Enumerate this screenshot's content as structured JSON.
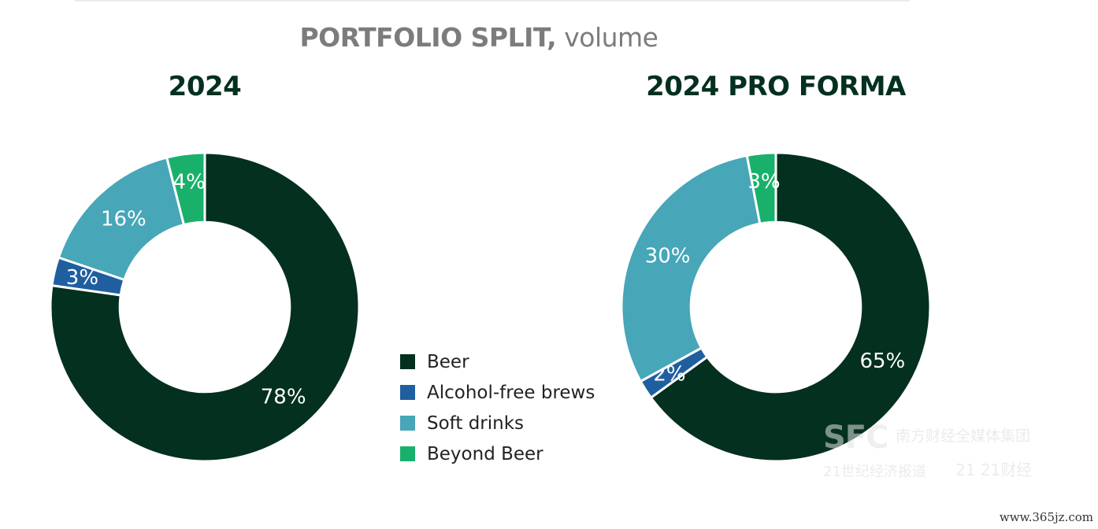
{
  "heading": {
    "bold": "PORTFOLIO SPLIT,",
    "rest": " volume"
  },
  "chart_data": [
    {
      "type": "pie",
      "title": "2024",
      "categories": [
        "Beer",
        "Alcohol-free brews",
        "Soft drinks",
        "Beyond Beer"
      ],
      "values": [
        78,
        3,
        16,
        4
      ],
      "labels": [
        "78%",
        "3%",
        "16%",
        "4%"
      ],
      "colors": [
        "#04301f",
        "#1f5fa0",
        "#47a6b8",
        "#19b06c"
      ],
      "hole": 0.55,
      "start": "12 o'clock, clockwise",
      "legend": "center"
    },
    {
      "type": "pie",
      "title": "2024 PRO FORMA",
      "categories": [
        "Beer",
        "Alcohol-free brews",
        "Soft drinks",
        "Beyond Beer"
      ],
      "values": [
        65,
        2,
        30,
        3
      ],
      "labels": [
        "65%",
        "2%",
        "30%",
        "3%"
      ],
      "colors": [
        "#04301f",
        "#1f5fa0",
        "#47a6b8",
        "#19b06c"
      ],
      "hole": 0.55,
      "start": "12 o'clock, clockwise",
      "legend": "center"
    }
  ],
  "legend": {
    "items": [
      {
        "label": "Beer",
        "color": "#04301f"
      },
      {
        "label": "Alcohol-free brews",
        "color": "#1f5fa0"
      },
      {
        "label": "Soft drinks",
        "color": "#47a6b8"
      },
      {
        "label": "Beyond Beer",
        "color": "#19b06c"
      }
    ]
  },
  "watermark": {
    "logo": "SFC",
    "line1": "南方财经全媒体集团",
    "line2": "21世纪经济报道",
    "line3": "21 21财经"
  },
  "site": {
    "url": "www.365jz.com"
  }
}
